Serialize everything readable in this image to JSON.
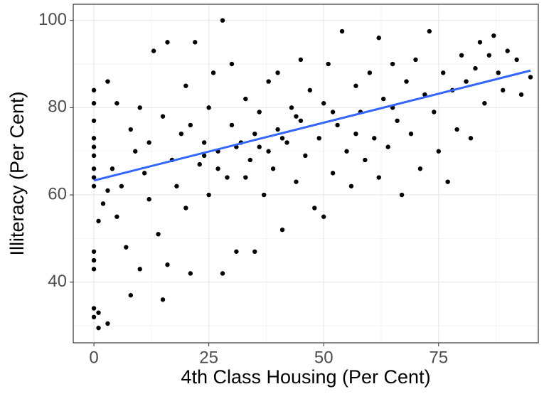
{
  "chart_data": {
    "type": "scatter",
    "x_label": "4th Class Housing (Per Cent)",
    "y_label": "Illiteracy (Per Cent)",
    "xlim": [
      -4.5,
      96.7
    ],
    "ylim": [
      26.1,
      103.7
    ],
    "xticks": [
      0,
      25,
      50,
      75
    ],
    "yticks": [
      40,
      60,
      80,
      100
    ],
    "xminor": [
      12.5,
      37.5,
      62.5,
      87.5
    ],
    "yminor": [
      30,
      50,
      70,
      90
    ],
    "grid": true,
    "series": [
      {
        "color": "#000000",
        "x": [
          0,
          0,
          0,
          0,
          0,
          0,
          0,
          0,
          0,
          0,
          0,
          0,
          0,
          0,
          1,
          1,
          3,
          1,
          2,
          3,
          3,
          4,
          5,
          5,
          6,
          7,
          8,
          8,
          9,
          10,
          10,
          11,
          12,
          12,
          13,
          14,
          15,
          15,
          16,
          16,
          17,
          18,
          19,
          20,
          20,
          21,
          21,
          22,
          23,
          24,
          25,
          25,
          26,
          27,
          28,
          28,
          29,
          30,
          30,
          31,
          32,
          33,
          34,
          35,
          35,
          36,
          37,
          38,
          38,
          39,
          40,
          40,
          41,
          42,
          43,
          44,
          45,
          45,
          46,
          47,
          48,
          49,
          50,
          50,
          51,
          52,
          53,
          54,
          55,
          56,
          57,
          58,
          59,
          60,
          61,
          62,
          62,
          63,
          64,
          65,
          66,
          67,
          68,
          69,
          70,
          71,
          72,
          73,
          74,
          75,
          76,
          77,
          78,
          79,
          80,
          81,
          82,
          83,
          84,
          85,
          86,
          87,
          88,
          89,
          90,
          92,
          93,
          95,
          24,
          31,
          36,
          41,
          27,
          33,
          44,
          52,
          57,
          65
        ],
        "values": [
          84,
          81,
          77,
          73,
          71,
          69,
          66,
          64,
          62,
          47,
          45,
          43,
          34,
          32,
          33,
          29.5,
          30.5,
          54,
          58,
          86,
          61,
          66,
          81,
          55,
          62,
          48,
          37,
          75,
          70,
          43,
          80,
          65,
          59,
          72,
          93,
          51,
          36,
          78,
          44,
          95,
          68,
          62,
          74,
          57,
          85,
          42,
          76,
          95,
          67,
          72,
          60,
          80,
          88,
          70,
          100,
          42,
          64,
          76,
          90,
          47,
          72,
          82,
          68,
          47,
          74,
          79,
          60,
          86,
          70,
          66,
          88,
          75,
          52,
          72,
          80,
          63,
          91,
          77,
          69,
          84,
          57,
          73,
          55,
          81,
          90,
          65,
          76,
          97.5,
          70,
          62,
          85,
          79,
          68,
          88,
          73,
          96,
          64,
          82,
          71,
          90,
          77,
          60,
          86,
          74,
          91,
          66,
          83,
          97.5,
          79,
          70,
          88,
          63,
          84,
          75,
          92,
          86,
          73,
          89,
          95,
          81,
          92,
          96.5,
          88,
          84,
          93,
          91,
          83,
          87,
          69,
          71,
          71,
          73,
          66,
          64,
          78,
          79,
          74,
          80
        ]
      }
    ],
    "trend": {
      "color": "#3366ff",
      "x": [
        0,
        95
      ],
      "values": [
        63.3,
        88.5
      ]
    }
  }
}
